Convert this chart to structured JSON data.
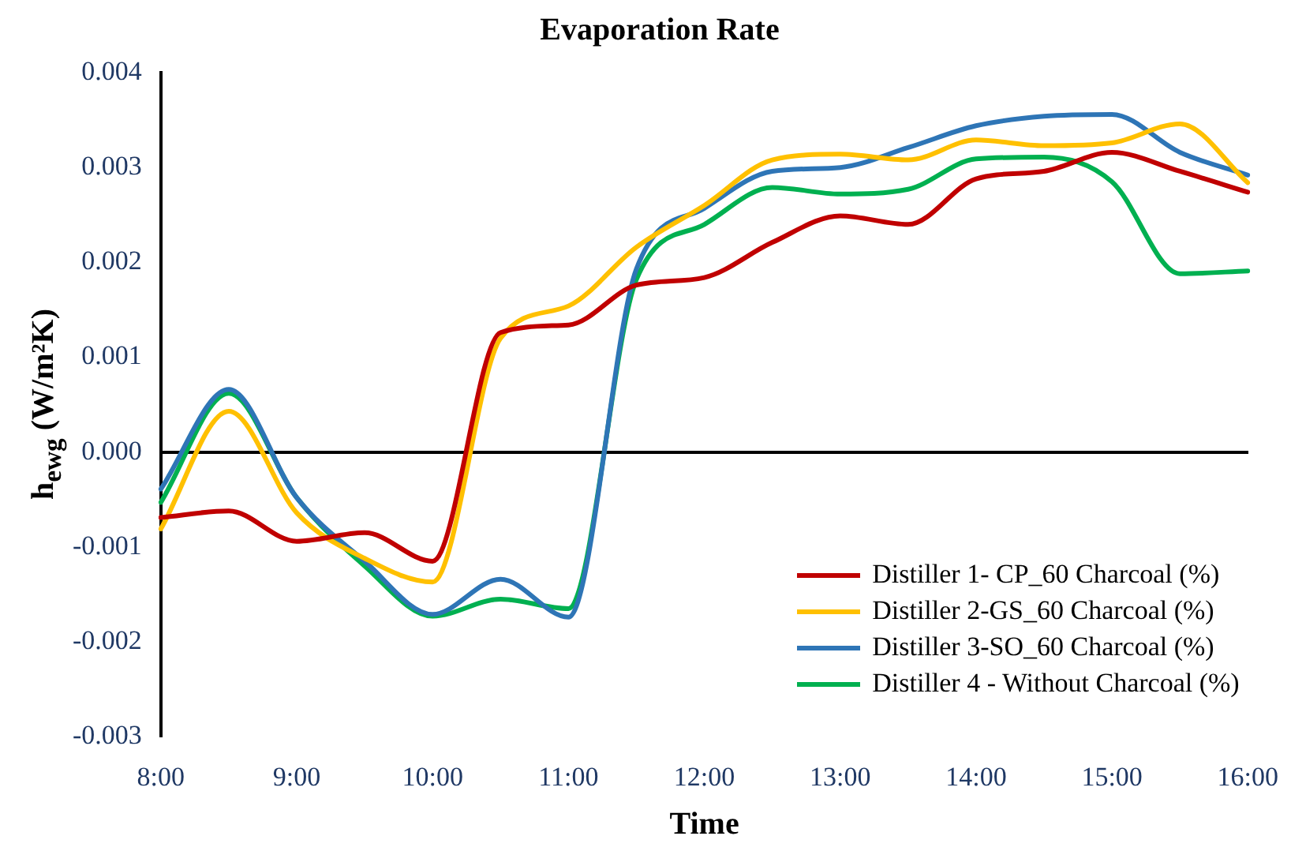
{
  "chart_data": {
    "type": "line",
    "title": "Evaporation Rate",
    "xlabel": "Time",
    "ylabel": "h$_{ewg}$ (W/m²K)",
    "categories": [
      "8:00",
      null,
      "9:00",
      null,
      "10:00",
      null,
      "11:00",
      null,
      "12:00",
      null,
      "13:00",
      null,
      "14:00",
      null,
      "15:00",
      null,
      "16:00"
    ],
    "series": [
      {
        "name": "Distiller 1- CP_60 Charcoal (%)",
        "color": "#c00000",
        "values": [
          -0.00069,
          -0.00062,
          -0.00094,
          -0.00085,
          -0.00115,
          0.00126,
          0.00134,
          0.00176,
          0.00184,
          0.00221,
          0.00249,
          0.0024,
          0.00288,
          0.00296,
          0.00316,
          0.00296,
          0.00274
        ]
      },
      {
        "name": "Distiller 2-GS_60 Charcoal (%)",
        "color": "#ffc000",
        "values": [
          -0.00081,
          0.00043,
          -0.00064,
          -0.00112,
          -0.00137,
          0.0012,
          0.00154,
          0.00216,
          0.0026,
          0.00308,
          0.00314,
          0.00308,
          0.00329,
          0.00323,
          0.00326,
          0.00346,
          0.00284
        ]
      },
      {
        "name": "Distiller 3-SO_60 Charcoal (%)",
        "color": "#2e75b6",
        "values": [
          -0.00039,
          0.00066,
          -0.00048,
          -0.00115,
          -0.00171,
          -0.00134,
          -0.00174,
          0.00193,
          0.00257,
          0.00296,
          0.003,
          0.00321,
          0.00344,
          0.00354,
          0.00356,
          0.00316,
          0.00292
        ]
      },
      {
        "name": "Distiller 4 - Without Charcoal (%)",
        "color": "#00b050",
        "values": [
          -0.00053,
          0.00062,
          -0.00048,
          -0.0012,
          -0.00173,
          -0.00155,
          -0.00165,
          0.00182,
          0.0024,
          0.00279,
          0.00272,
          0.00277,
          0.00309,
          0.00311,
          0.00285,
          0.00188,
          0.00191
        ]
      }
    ],
    "ylim": [
      -0.003,
      0.004
    ],
    "yticks": [
      -0.003,
      -0.002,
      -0.001,
      {
        "value": 0,
        "label": "0.000"
      },
      0.001,
      0.002,
      0.003,
      0.004
    ],
    "legend": "bottom right",
    "marker": "none"
  }
}
